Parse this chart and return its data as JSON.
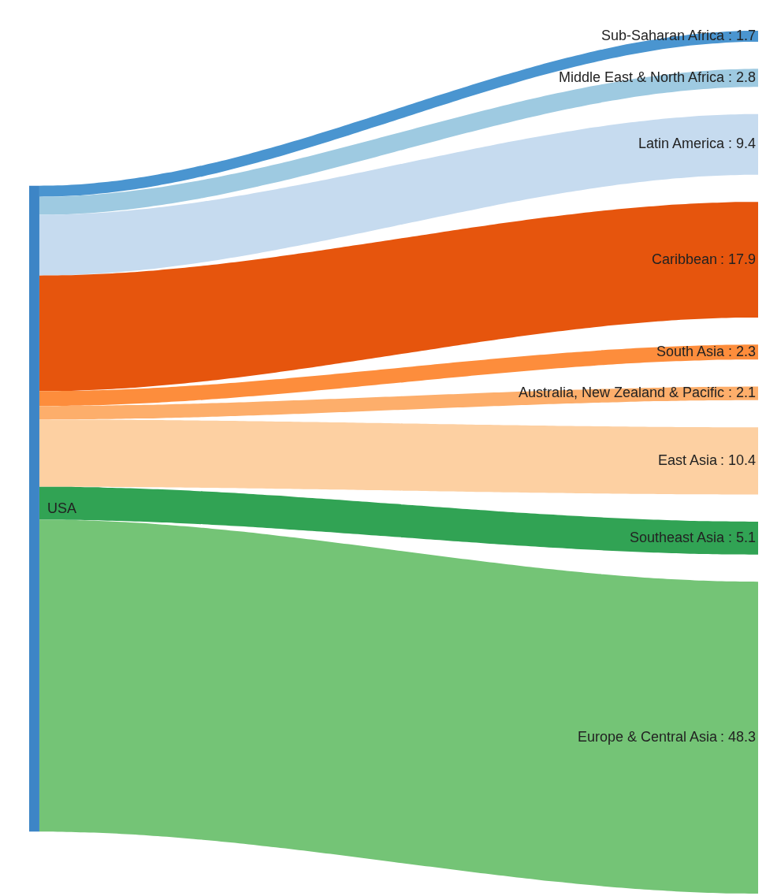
{
  "chart_data": {
    "type": "other",
    "categories": [
      "Sub-Saharan Africa",
      "Middle East & North Africa",
      "Latin America",
      "Caribbean",
      "South Asia",
      "Australia, New Zealand & Pacific",
      "East Asia",
      "Southeast Asia",
      "Europe & Central Asia"
    ],
    "values": [
      1.7,
      2.8,
      9.4,
      17.9,
      2.3,
      2.1,
      10.4,
      5.1,
      48.3
    ],
    "colors": [
      "#4a95d0",
      "#9ecae1",
      "#c6dbef",
      "#e6550d",
      "#fd8d3c",
      "#fdae6b",
      "#fdd0a2",
      "#31a354",
      "#74c476"
    ],
    "annotations": [
      "USA"
    ],
    "value_labels": [
      ": 1.7",
      ": 2.8",
      ": 9.4",
      ": 17.9",
      ": 2.3",
      ": 2.1",
      ": 10.4",
      ": 5.1",
      ": 48.3"
    ]
  }
}
